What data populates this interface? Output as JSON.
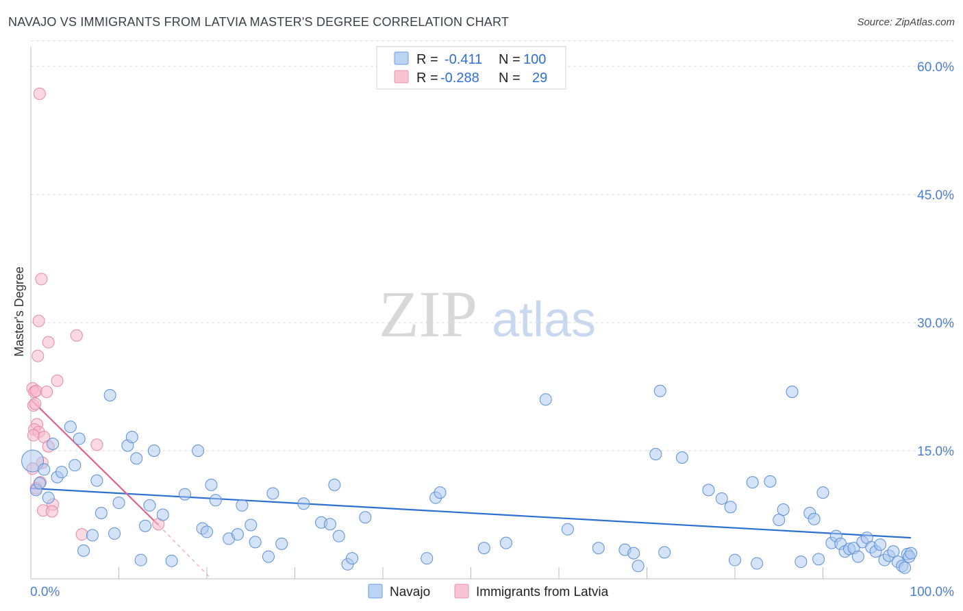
{
  "title": "NAVAJO VS IMMIGRANTS FROM LATVIA MASTER'S DEGREE CORRELATION CHART",
  "source": "Source: ZipAtlas.com",
  "watermark": {
    "zip": "ZIP",
    "atlas": "atlas"
  },
  "colors": {
    "navajo_fill": "#a9c8f0",
    "navajo_stroke": "#5a8fd8",
    "navajo_line": "#2b6fd0",
    "latvia_fill": "#f7b8cb",
    "latvia_stroke": "#e38aa6",
    "latvia_line": "#e0628a",
    "axis_text": "#4a7fd0",
    "grid": "#d8d8d8"
  },
  "legend": {
    "rows": [
      {
        "r_label": "R =",
        "r_value": "-0.411",
        "n_label": "N =",
        "n_value": "100"
      },
      {
        "r_label": "R =",
        "r_value": "-0.288",
        "n_label": "N =",
        "n_value": "29"
      }
    ]
  },
  "bottom_legend": {
    "navajo": "Navajo",
    "latvia": "Immigrants from Latvia"
  },
  "chart_data": {
    "type": "scatter",
    "title": "NAVAJO VS IMMIGRANTS FROM LATVIA MASTER'S DEGREE CORRELATION CHART",
    "ylabel": "Master's Degree",
    "xlabel": "",
    "xlim": [
      0,
      100
    ],
    "ylim": [
      0,
      63
    ],
    "x_tick_labels": {
      "min": "0.0%",
      "max": "100.0%"
    },
    "y_ticks": [
      {
        "value": 15,
        "label": "15.0%"
      },
      {
        "value": 30,
        "label": "30.0%"
      },
      {
        "value": 45,
        "label": "45.0%"
      },
      {
        "value": 60,
        "label": "60.0%"
      }
    ],
    "series": [
      {
        "name": "Navajo",
        "r": -0.411,
        "n": 100,
        "trend": {
          "x0": 0,
          "y0": 10.6,
          "x1": 100,
          "y1": 4.8
        },
        "points": [
          [
            0.2,
            13.8
          ],
          [
            0.6,
            10.4
          ],
          [
            1.0,
            11.2
          ],
          [
            1.5,
            12.8
          ],
          [
            2.0,
            9.5
          ],
          [
            2.5,
            15.8
          ],
          [
            3.0,
            11.9
          ],
          [
            3.5,
            12.5
          ],
          [
            4.5,
            17.8
          ],
          [
            5.5,
            16.4
          ],
          [
            5.0,
            13.3
          ],
          [
            6.0,
            3.3
          ],
          [
            7.0,
            5.1
          ],
          [
            7.5,
            11.5
          ],
          [
            8.0,
            7.7
          ],
          [
            9.0,
            21.5
          ],
          [
            9.5,
            5.3
          ],
          [
            10.0,
            8.9
          ],
          [
            11.0,
            15.6
          ],
          [
            11.5,
            16.6
          ],
          [
            12.0,
            14.1
          ],
          [
            12.5,
            2.2
          ],
          [
            13.0,
            6.2
          ],
          [
            13.5,
            8.6
          ],
          [
            14.0,
            15.0
          ],
          [
            15.0,
            7.5
          ],
          [
            16.0,
            2.1
          ],
          [
            17.5,
            9.9
          ],
          [
            19.0,
            15.0
          ],
          [
            19.5,
            5.9
          ],
          [
            20.0,
            5.5
          ],
          [
            20.5,
            11.0
          ],
          [
            21.0,
            9.2
          ],
          [
            22.5,
            4.7
          ],
          [
            23.5,
            5.2
          ],
          [
            24.0,
            8.6
          ],
          [
            25.0,
            6.3
          ],
          [
            25.5,
            4.3
          ],
          [
            27.0,
            2.6
          ],
          [
            27.5,
            10.0
          ],
          [
            28.5,
            4.1
          ],
          [
            31.0,
            8.8
          ],
          [
            33.0,
            6.6
          ],
          [
            34.0,
            6.4
          ],
          [
            34.5,
            11.0
          ],
          [
            35.0,
            5.0
          ],
          [
            36.0,
            1.7
          ],
          [
            36.5,
            2.4
          ],
          [
            38.0,
            7.2
          ],
          [
            45.0,
            2.4
          ],
          [
            46.0,
            9.5
          ],
          [
            46.5,
            10.1
          ],
          [
            51.5,
            3.6
          ],
          [
            54.0,
            4.2
          ],
          [
            58.5,
            21.0
          ],
          [
            61.0,
            5.8
          ],
          [
            64.5,
            3.6
          ],
          [
            67.5,
            3.4
          ],
          [
            68.5,
            3.0
          ],
          [
            69.0,
            1.5
          ],
          [
            71.0,
            14.6
          ],
          [
            71.5,
            22.0
          ],
          [
            72.0,
            3.1
          ],
          [
            74.0,
            14.2
          ],
          [
            77.0,
            10.4
          ],
          [
            78.5,
            9.4
          ],
          [
            79.5,
            8.4
          ],
          [
            80.0,
            2.2
          ],
          [
            82.0,
            11.3
          ],
          [
            82.5,
            1.8
          ],
          [
            84.0,
            11.4
          ],
          [
            85.0,
            6.9
          ],
          [
            85.5,
            8.1
          ],
          [
            86.5,
            21.9
          ],
          [
            87.5,
            2.0
          ],
          [
            88.5,
            7.7
          ],
          [
            89.0,
            7.0
          ],
          [
            89.5,
            2.3
          ],
          [
            90.0,
            10.1
          ],
          [
            91.0,
            4.2
          ],
          [
            91.5,
            5.0
          ],
          [
            92.0,
            4.1
          ],
          [
            92.5,
            3.2
          ],
          [
            93.0,
            3.5
          ],
          [
            93.5,
            3.6
          ],
          [
            94.0,
            2.6
          ],
          [
            94.5,
            4.3
          ],
          [
            95.0,
            4.8
          ],
          [
            95.5,
            3.7
          ],
          [
            96.0,
            3.2
          ],
          [
            96.5,
            4.0
          ],
          [
            97.0,
            2.2
          ],
          [
            97.5,
            2.7
          ],
          [
            98.0,
            3.2
          ],
          [
            98.5,
            2.0
          ],
          [
            99.0,
            1.5
          ],
          [
            99.3,
            1.3
          ],
          [
            99.6,
            2.9
          ],
          [
            99.8,
            2.6
          ],
          [
            100.0,
            3.0
          ]
        ]
      },
      {
        "name": "Immigrants from Latvia",
        "r": -0.288,
        "n": 29,
        "trend": {
          "x0": 0,
          "y0": 21.0,
          "x1": 14.5,
          "y1": 6.3,
          "dash_x1": 20.5,
          "dash_y1": 0
        },
        "points": [
          [
            1.0,
            56.8
          ],
          [
            1.2,
            35.1
          ],
          [
            0.9,
            30.2
          ],
          [
            2.0,
            27.7
          ],
          [
            5.2,
            28.5
          ],
          [
            0.8,
            26.1
          ],
          [
            3.0,
            23.2
          ],
          [
            0.2,
            22.3
          ],
          [
            0.4,
            21.9
          ],
          [
            0.6,
            22.0
          ],
          [
            1.8,
            21.9
          ],
          [
            0.3,
            20.3
          ],
          [
            0.5,
            20.5
          ],
          [
            0.7,
            18.1
          ],
          [
            0.4,
            17.5
          ],
          [
            0.9,
            17.2
          ],
          [
            0.3,
            16.8
          ],
          [
            1.5,
            16.6
          ],
          [
            2.0,
            15.5
          ],
          [
            7.5,
            15.7
          ],
          [
            1.3,
            13.6
          ],
          [
            1.1,
            11.3
          ],
          [
            0.6,
            10.6
          ],
          [
            2.5,
            8.7
          ],
          [
            1.4,
            8.0
          ],
          [
            2.4,
            7.9
          ],
          [
            5.8,
            5.2
          ],
          [
            14.5,
            6.4
          ],
          [
            0.2,
            12.9
          ]
        ]
      }
    ]
  }
}
